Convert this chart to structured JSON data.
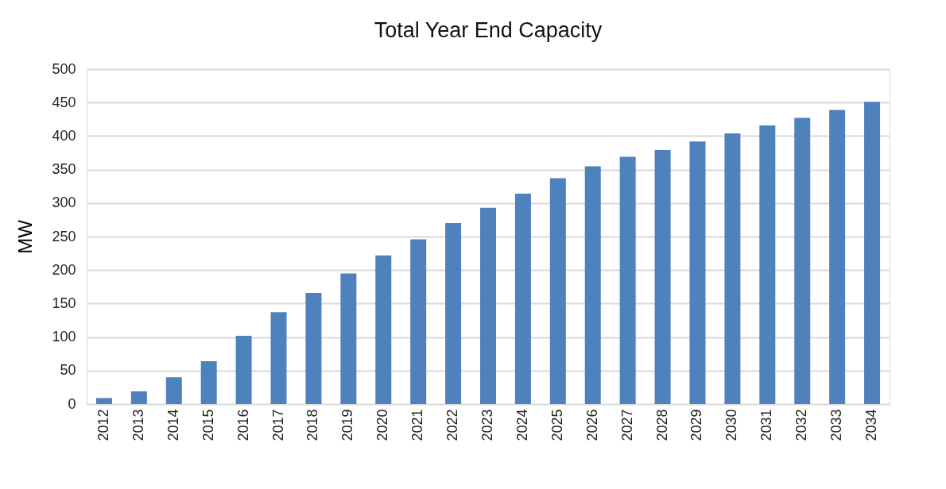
{
  "chart_data": {
    "type": "bar",
    "title": "Total Year End Capacity",
    "ylabel": "MW",
    "categories": [
      "2012",
      "2013",
      "2014",
      "2015",
      "2016",
      "2017",
      "2018",
      "2019",
      "2020",
      "2021",
      "2022",
      "2023",
      "2024",
      "2025",
      "2026",
      "2027",
      "2028",
      "2029",
      "2030",
      "2031",
      "2032",
      "2033",
      "2034"
    ],
    "values": [
      9,
      19,
      40,
      64,
      102,
      137,
      166,
      195,
      222,
      246,
      270,
      293,
      314,
      337,
      355,
      369,
      379,
      392,
      404,
      416,
      427,
      439,
      451
    ],
    "color": "#4f81bd",
    "ylim": [
      0,
      500
    ],
    "yticks": [
      0,
      50,
      100,
      150,
      200,
      250,
      300,
      350,
      400,
      450,
      500
    ],
    "grid": "y"
  }
}
